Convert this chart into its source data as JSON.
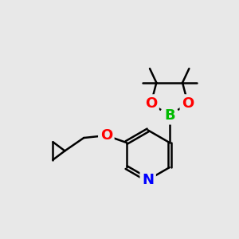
{
  "background_color": "#e8e8e8",
  "bond_color": "#000000",
  "bond_width": 1.8,
  "atom_colors": {
    "B": "#00bb00",
    "O": "#ff0000",
    "N": "#0000ff",
    "C": "#000000"
  },
  "font_size_atom": 13,
  "figsize": [
    3.0,
    3.0
  ],
  "dpi": 100
}
